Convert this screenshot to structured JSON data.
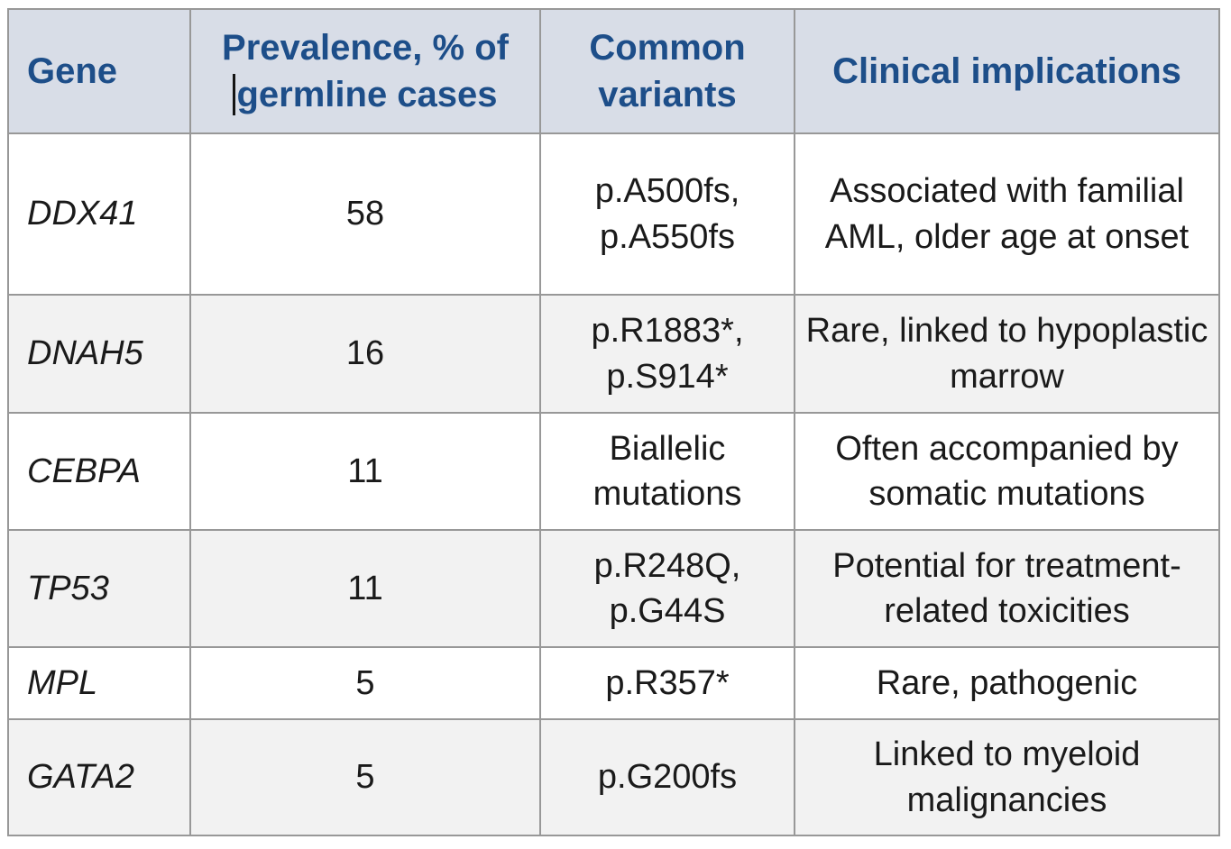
{
  "table": {
    "columns": [
      {
        "id": "gene",
        "label": "Gene"
      },
      {
        "id": "prevalence",
        "label_line1": "Prevalence, % of",
        "label_line2": "germline cases",
        "has_text_cursor": true
      },
      {
        "id": "variants",
        "label": "Common variants"
      },
      {
        "id": "implications",
        "label": "Clinical implications"
      }
    ],
    "rows": [
      {
        "gene": "DDX41",
        "prevalence": "58",
        "variants": "p.A500fs, p.A550fs",
        "implications": "Associated with familial AML, older age at onset"
      },
      {
        "gene": "DNAH5",
        "prevalence": "16",
        "variants": "p.R1883*, p.S914*",
        "implications": "Rare, linked to hypoplastic marrow"
      },
      {
        "gene": "CEBPA",
        "prevalence": "11",
        "variants": "Biallelic mutations",
        "implications": "Often accompanied by somatic mutations"
      },
      {
        "gene": "TP53",
        "prevalence": "11",
        "variants": "p.R248Q, p.G44S",
        "implications": "Potential for treatment-related toxicities"
      },
      {
        "gene": "MPL",
        "prevalence": "5",
        "variants": "p.R357*",
        "implications": "Rare, pathogenic"
      },
      {
        "gene": "GATA2",
        "prevalence": "5",
        "variants": "p.G200fs",
        "implications": "Linked to myeloid malignancies"
      }
    ]
  },
  "colors": {
    "header_background": "#d8dde7",
    "header_text": "#1d4e89",
    "border": "#989898",
    "row_stripe": "#f2f2f2",
    "body_text": "#1a1a1a"
  }
}
